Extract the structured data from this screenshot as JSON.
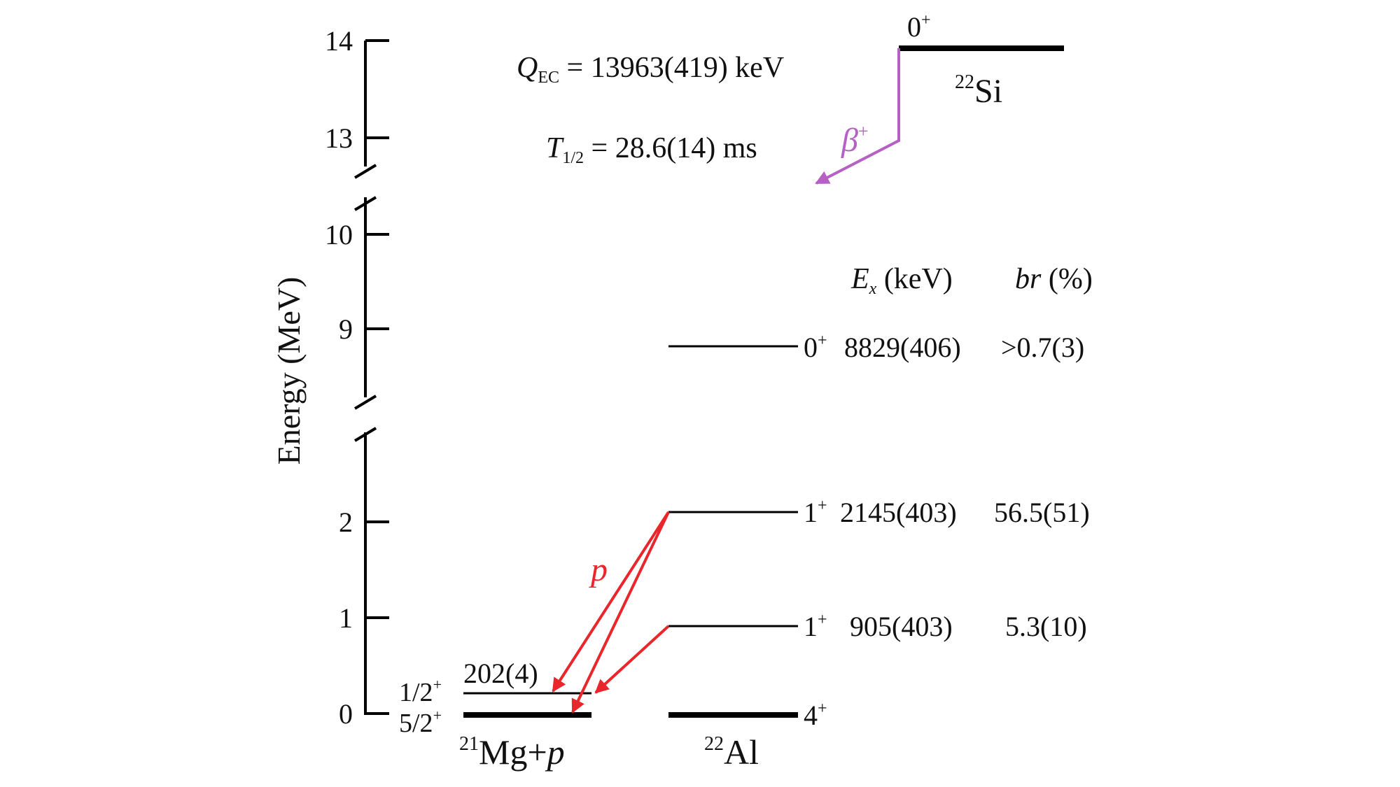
{
  "axis": {
    "label": "Energy (MeV)",
    "ticks": [
      "14",
      "13",
      "10",
      "9",
      "2",
      "1",
      "0"
    ]
  },
  "annotations": {
    "qec": {
      "symbol": "Q",
      "subscript": "EC",
      "value": " = 13963(419) keV"
    },
    "half_life": {
      "symbol": "T",
      "subscript": "1/2",
      "value": " = 28.6(14) ms"
    }
  },
  "columns": {
    "ex_symbol": "E",
    "ex_subscript": "x",
    "ex_unit": " (keV)",
    "br_symbol": "br",
    "br_unit": " (%)"
  },
  "parent": {
    "nucleus_mass": "22",
    "nucleus_symbol": "Si",
    "spin": "0",
    "parity": "+",
    "decay_symbol": "β",
    "decay_charge": "+"
  },
  "daughter": {
    "nucleus_mass": "22",
    "nucleus_symbol": "Al",
    "levels": [
      {
        "spin": "0",
        "parity": "+",
        "energy_kev": "8829(406)",
        "br": ">0.7(3)"
      },
      {
        "spin": "1",
        "parity": "+",
        "energy_kev": "2145(403)",
        "br": "56.5(51)"
      },
      {
        "spin": "1",
        "parity": "+",
        "energy_kev": "905(403)",
        "br": "5.3(10)"
      },
      {
        "spin": "4",
        "parity": "+",
        "energy_kev": "",
        "br": ""
      }
    ]
  },
  "final": {
    "nucleus_mass": "21",
    "nucleus_symbol": "Mg+",
    "particle": "p",
    "proton_label": "p",
    "levels": [
      {
        "spin": "1/2",
        "parity": "+",
        "energy_kev": "202(4)"
      },
      {
        "spin": "5/2",
        "parity": "+",
        "energy_kev": ""
      }
    ]
  },
  "colors": {
    "proton_arrows": "#e8262b",
    "beta_arrow": "#b660c6",
    "lines": "#000000"
  }
}
